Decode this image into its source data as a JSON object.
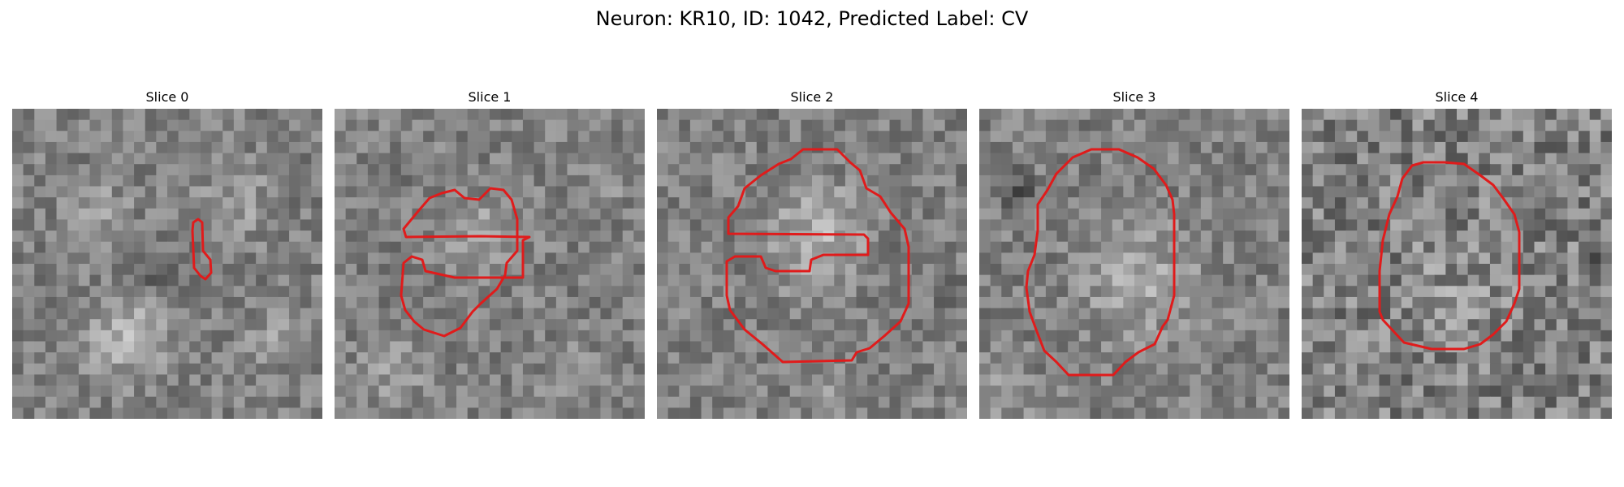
{
  "figure": {
    "title": "Neuron: KR10, ID: 1042, Predicted Label: CV"
  },
  "panels": [
    {
      "title": "Slice 0",
      "tile_icon": "grayscale-image-slice",
      "outline_color": "#e01b1b"
    },
    {
      "title": "Slice 1",
      "tile_icon": "grayscale-image-slice",
      "outline_color": "#e01b1b"
    },
    {
      "title": "Slice 2",
      "tile_icon": "grayscale-image-slice",
      "outline_color": "#e01b1b"
    },
    {
      "title": "Slice 3",
      "tile_icon": "grayscale-image-slice",
      "outline_color": "#e01b1b"
    },
    {
      "title": "Slice 4",
      "tile_icon": "grayscale-image-slice",
      "outline_color": "#e01b1b"
    }
  ]
}
